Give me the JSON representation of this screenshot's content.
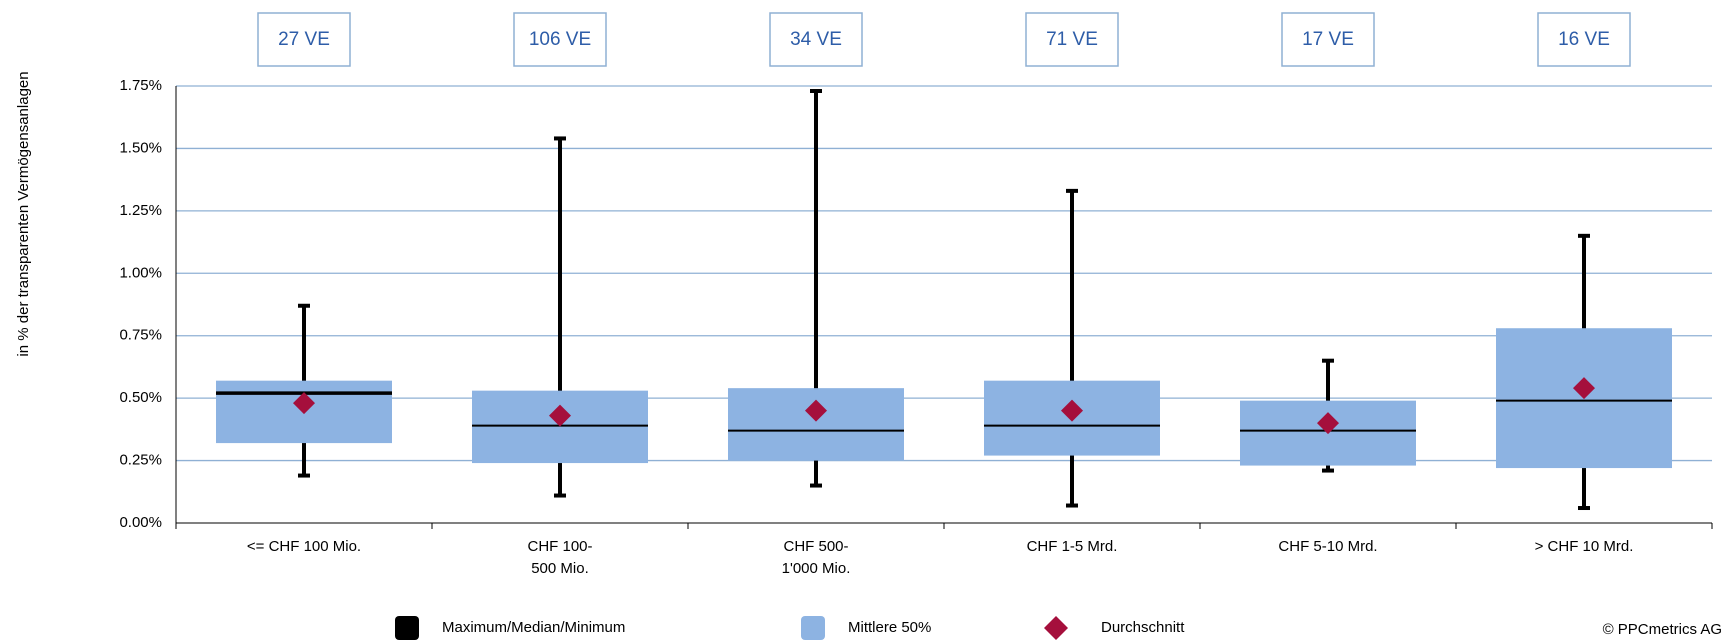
{
  "chart_data": {
    "type": "box",
    "y_label": "in % der transparenten Vermögensanlagen",
    "categories": [
      [
        "<= CHF 100 Mio."
      ],
      [
        "CHF 100-",
        "500 Mio."
      ],
      [
        "CHF 500-",
        "1'000 Mio."
      ],
      [
        "CHF 1-5 Mrd."
      ],
      [
        "CHF 5-10 Mrd."
      ],
      [
        "> CHF 10 Mrd."
      ]
    ],
    "counts": [
      "27 VE",
      "106 VE",
      "34 VE",
      "71 VE",
      "17 VE",
      "16 VE"
    ],
    "ylim": [
      0,
      1.75
    ],
    "yticks": [
      {
        "value": 0,
        "label": "0.00%"
      },
      {
        "value": 0.25,
        "label": "0.25%"
      },
      {
        "value": 0.5,
        "label": "0.50%"
      },
      {
        "value": 0.75,
        "label": "0.75%"
      },
      {
        "value": 1,
        "label": "1.00%"
      },
      {
        "value": 1.25,
        "label": "1.25%"
      },
      {
        "value": 1.5,
        "label": "1.50%"
      },
      {
        "value": 1.75,
        "label": "1.75%"
      }
    ],
    "grid": true,
    "series": [
      {
        "name": "Maximum/Median/Minimum",
        "color": "#000000",
        "max": [
          0.87,
          1.54,
          1.73,
          1.33,
          0.65,
          1.15
        ],
        "median": [
          0.52,
          0.39,
          0.37,
          0.39,
          0.37,
          0.49
        ],
        "min": [
          0.19,
          0.11,
          0.15,
          0.07,
          0.21,
          0.06
        ]
      },
      {
        "name": "Mittlere 50%",
        "color": "#8db3e2",
        "q1": [
          0.32,
          0.24,
          0.25,
          0.27,
          0.23,
          0.22
        ],
        "q3": [
          0.57,
          0.53,
          0.54,
          0.57,
          0.49,
          0.78
        ]
      },
      {
        "name": "Durchschnitt",
        "color": "#a50f3c",
        "values": [
          0.48,
          0.43,
          0.45,
          0.45,
          0.4,
          0.54
        ]
      }
    ],
    "copyright": "© PPCmetrics AG"
  }
}
